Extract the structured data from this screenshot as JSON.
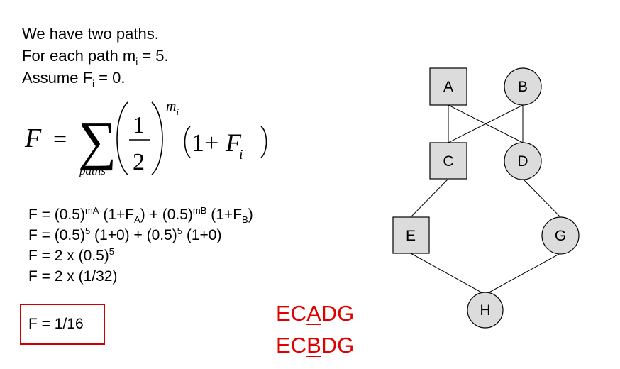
{
  "intro": {
    "line1": "We have two paths.",
    "line2_prefix": "For each path m",
    "line2_sub": "i",
    "line2_suffix": " = 5.",
    "line3_prefix": "Assume F",
    "line3_sub": "i",
    "line3_suffix": " = 0."
  },
  "formula": {
    "lhs": "F",
    "equals": "=",
    "sum": "∑",
    "numerator": "1",
    "denominator": "2",
    "exponent_base": "m",
    "exponent_sub": "i",
    "one_plus": "1+",
    "F_i_base": "F",
    "F_i_sub": "i",
    "sum_index": "paths"
  },
  "equations": {
    "l1_a": "F = (0.5)",
    "l1_sup_a": "mA",
    "l1_b": " (1+F",
    "l1_sub_a": "A",
    "l1_c": ") + (0.5)",
    "l1_sup_b": "mB",
    "l1_d": " (1+F",
    "l1_sub_b": "B",
    "l1_e": ")",
    "l2_a": "F = (0.5)",
    "l2_sup_a": "5",
    "l2_b": " (1+0) + (0.5)",
    "l2_sup_b": "5",
    "l2_c": " (1+0)",
    "l3_a": "F = 2 x (0.5)",
    "l3_sup": "5",
    "l4": "F = 2 x (1/32)"
  },
  "result": "F = 1/16",
  "paths": [
    {
      "pre": "EC",
      "highlight": "A",
      "post": "DG"
    },
    {
      "pre": "EC",
      "highlight": "B",
      "post": "DG"
    }
  ],
  "nodes": [
    "A",
    "B",
    "C",
    "D",
    "E",
    "G",
    "H"
  ],
  "colors": {
    "highlight_red": "#e00000",
    "box_border": "#d00000",
    "node_fill": "#dcdcdc"
  }
}
